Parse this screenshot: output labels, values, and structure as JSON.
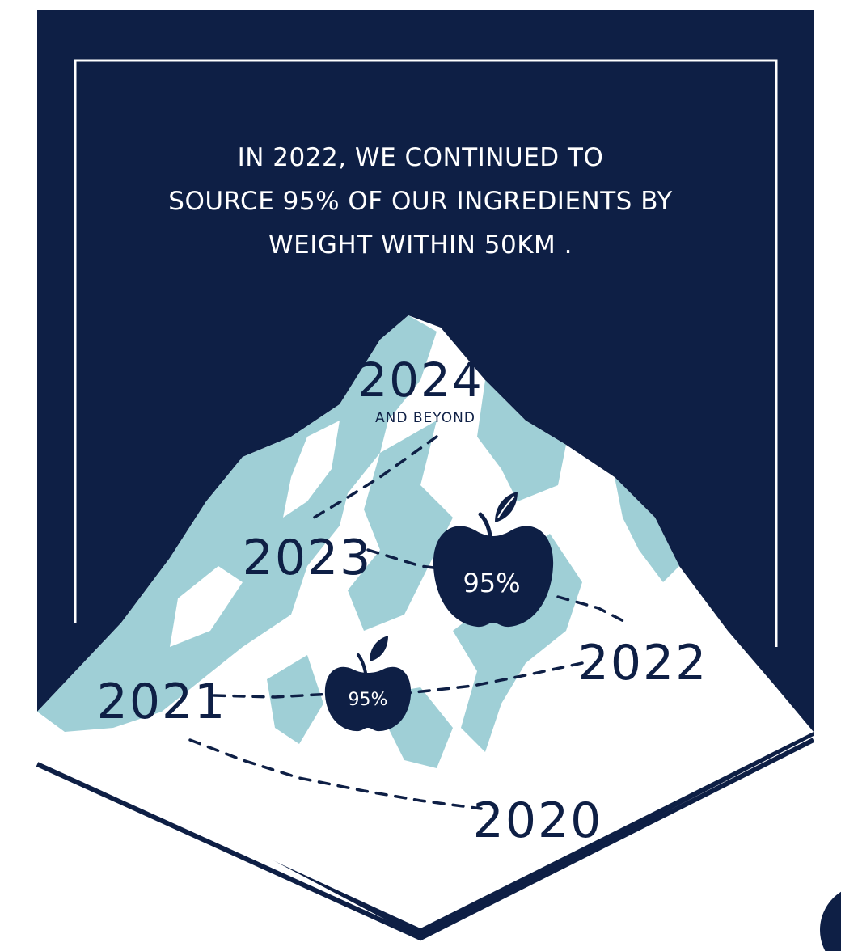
{
  "headline": {
    "line1": "IN 2022, WE CONTINUED TO",
    "line2": "SOURCE 95% OF OUR INGREDIENTS BY",
    "line3": "WEIGHT WITHIN 50KM ."
  },
  "milestones": {
    "y2024": {
      "year": "2024",
      "note": "AND BEYOND"
    },
    "y2023": {
      "year": "2023"
    },
    "y2022": {
      "year": "2022"
    },
    "y2021": {
      "year": "2021"
    },
    "y2020": {
      "year": "2020"
    }
  },
  "badges": {
    "big": {
      "value": "95%"
    },
    "small": {
      "value": "95%"
    }
  },
  "colors": {
    "navy": "#0e1f45",
    "ice": "#9fcfd6",
    "snow": "#ffffff"
  },
  "icons": [
    "apple-icon",
    "frame-border"
  ]
}
